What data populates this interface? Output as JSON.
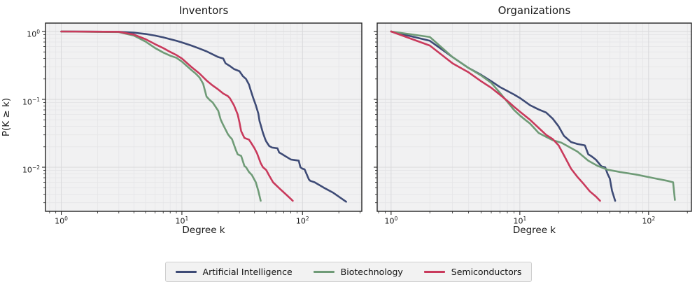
{
  "figure": {
    "ylabel": "P(K ≥ k)",
    "background": "#ffffff",
    "plot_background": "#f1f1f2",
    "grid_major_color": "#d9d9db",
    "grid_minor_color": "#e5e5e7",
    "spine_color": "#242424",
    "tick_color": "#242424",
    "text_color": "#1a1a1a"
  },
  "legend": {
    "items": [
      {
        "label": "Artificial Intelligence",
        "color": "#3e4b76"
      },
      {
        "label": "Biotechnology",
        "color": "#6f9b77"
      },
      {
        "label": "Semiconductors",
        "color": "#c93a5c"
      }
    ]
  },
  "chart_data": [
    {
      "type": "line",
      "title": "Inventors",
      "xlabel": "Degree k",
      "ylabel": "P(K ≥ k)",
      "xscale": "log",
      "yscale": "log",
      "xlim": [
        0.74,
        310
      ],
      "ylim": [
        0.00224,
        1.33
      ],
      "grid": true,
      "xticks": {
        "values": [
          1,
          10,
          100
        ],
        "exponents": [
          "0",
          "1",
          "2"
        ]
      },
      "yticks": {
        "values": [
          1,
          0.1,
          0.01
        ],
        "exponents": [
          "0",
          "−1",
          "−2"
        ],
        "show_labels": true
      },
      "series": [
        {
          "name": "Artificial Intelligence",
          "color": "#3e4b76",
          "x": [
            1,
            3,
            4,
            5,
            6,
            7,
            8,
            9,
            10,
            12,
            14,
            16,
            18,
            20,
            22,
            23,
            25,
            27,
            30,
            32,
            34,
            36,
            37,
            39,
            41,
            43,
            44,
            45,
            47,
            49,
            50,
            53,
            56,
            62,
            64,
            68,
            70,
            80,
            93,
            96,
            100,
            104,
            113,
            116,
            126,
            150,
            180,
            230
          ],
          "y": [
            1.0,
            0.99,
            0.96,
            0.92,
            0.87,
            0.82,
            0.77,
            0.73,
            0.69,
            0.62,
            0.56,
            0.51,
            0.46,
            0.42,
            0.4,
            0.34,
            0.31,
            0.28,
            0.26,
            0.22,
            0.2,
            0.165,
            0.14,
            0.105,
            0.082,
            0.062,
            0.048,
            0.042,
            0.032,
            0.026,
            0.024,
            0.0205,
            0.0195,
            0.019,
            0.0165,
            0.0155,
            0.015,
            0.013,
            0.0125,
            0.01,
            0.0095,
            0.0093,
            0.0066,
            0.0063,
            0.006,
            0.005,
            0.0042,
            0.0031
          ]
        },
        {
          "name": "Biotechnology",
          "color": "#6f9b77",
          "x": [
            1,
            3,
            4,
            5,
            6,
            7,
            8,
            9,
            10,
            11,
            12,
            13,
            14,
            15,
            16,
            17,
            18,
            20,
            21,
            22,
            24,
            25,
            26,
            28,
            29,
            31,
            33,
            34,
            36,
            38,
            41,
            43,
            45
          ],
          "y": [
            1.0,
            0.98,
            0.87,
            0.71,
            0.57,
            0.49,
            0.44,
            0.41,
            0.36,
            0.31,
            0.27,
            0.24,
            0.21,
            0.17,
            0.11,
            0.098,
            0.09,
            0.068,
            0.05,
            0.042,
            0.031,
            0.028,
            0.026,
            0.018,
            0.0155,
            0.0147,
            0.0104,
            0.01,
            0.0085,
            0.0077,
            0.006,
            0.0045,
            0.0032
          ]
        },
        {
          "name": "Semiconductors",
          "color": "#c93a5c",
          "x": [
            1,
            3,
            4,
            5,
            6,
            7,
            8,
            9,
            10,
            12,
            14,
            16,
            18,
            20,
            22,
            24,
            25,
            27,
            28,
            29,
            30,
            31,
            33,
            36,
            38,
            40,
            42,
            45,
            47,
            50,
            53,
            57,
            65,
            75,
            83
          ],
          "y": [
            1.0,
            0.99,
            0.9,
            0.77,
            0.65,
            0.57,
            0.5,
            0.45,
            0.4,
            0.3,
            0.24,
            0.19,
            0.16,
            0.14,
            0.122,
            0.112,
            0.104,
            0.082,
            0.07,
            0.06,
            0.046,
            0.034,
            0.027,
            0.0255,
            0.022,
            0.019,
            0.016,
            0.0115,
            0.01,
            0.0091,
            0.0075,
            0.006,
            0.0048,
            0.0038,
            0.0032
          ]
        }
      ]
    },
    {
      "type": "line",
      "title": "Organizations",
      "xlabel": "Degree k",
      "ylabel": "P(K ≥ k)",
      "xscale": "log",
      "yscale": "log",
      "xlim": [
        0.78,
        215
      ],
      "ylim": [
        0.00224,
        1.33
      ],
      "grid": true,
      "xticks": {
        "values": [
          1,
          10,
          100
        ],
        "exponents": [
          "0",
          "1",
          "2"
        ]
      },
      "yticks": {
        "values": [
          1,
          0.1,
          0.01
        ],
        "exponents": [
          "0",
          "−1",
          "−2"
        ],
        "show_labels": false
      },
      "series": [
        {
          "name": "Artificial Intelligence",
          "color": "#3e4b76",
          "x": [
            1,
            2,
            3,
            4,
            5,
            6,
            7,
            8,
            9,
            10,
            12,
            14,
            16,
            18,
            20,
            22,
            25,
            28,
            32,
            34,
            36,
            39,
            43,
            46,
            48,
            50,
            52,
            55
          ],
          "y": [
            1.0,
            0.73,
            0.42,
            0.29,
            0.23,
            0.185,
            0.152,
            0.133,
            0.118,
            0.105,
            0.082,
            0.071,
            0.064,
            0.052,
            0.04,
            0.029,
            0.0235,
            0.022,
            0.021,
            0.0155,
            0.0145,
            0.0129,
            0.0103,
            0.01,
            0.008,
            0.0068,
            0.0045,
            0.0032
          ]
        },
        {
          "name": "Biotechnology",
          "color": "#6f9b77",
          "x": [
            1,
            2,
            3,
            4,
            5,
            6,
            7,
            8,
            9,
            10,
            11,
            12,
            14,
            16,
            18,
            21,
            24,
            28,
            31,
            34,
            40,
            48,
            60,
            80,
            110,
            140,
            155,
            160
          ],
          "y": [
            1.0,
            0.83,
            0.42,
            0.29,
            0.225,
            0.175,
            0.125,
            0.092,
            0.07,
            0.058,
            0.05,
            0.044,
            0.032,
            0.028,
            0.025,
            0.023,
            0.02,
            0.017,
            0.0145,
            0.0125,
            0.0105,
            0.0092,
            0.0085,
            0.0078,
            0.0069,
            0.0063,
            0.006,
            0.0033
          ]
        },
        {
          "name": "Semiconductors",
          "color": "#c93a5c",
          "x": [
            1,
            2,
            3,
            4,
            5,
            6,
            7,
            8,
            9,
            10,
            12,
            14,
            16,
            18,
            20,
            22,
            25,
            28,
            31,
            35,
            39,
            42
          ],
          "y": [
            1.0,
            0.62,
            0.34,
            0.25,
            0.185,
            0.148,
            0.117,
            0.095,
            0.078,
            0.066,
            0.05,
            0.038,
            0.03,
            0.026,
            0.021,
            0.015,
            0.0095,
            0.0072,
            0.0058,
            0.0044,
            0.0037,
            0.0032
          ]
        }
      ]
    }
  ]
}
